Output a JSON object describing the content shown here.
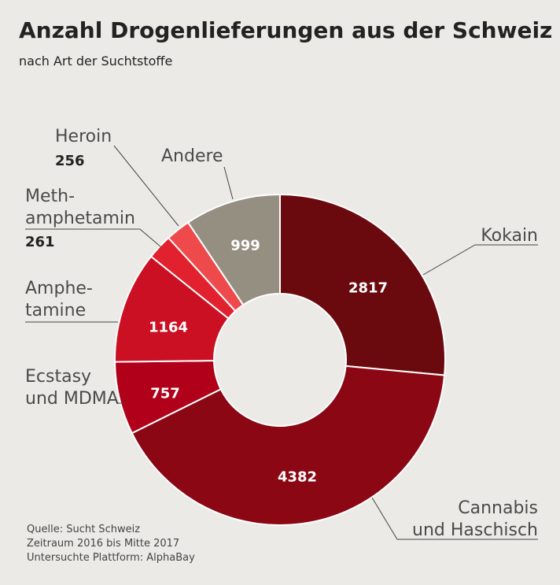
{
  "title": "Anzahl Drogenlieferungen aus der Schweiz",
  "subtitle": "nach Art der Suchtstoffe",
  "source": {
    "line1": "Quelle: Sucht Schweiz",
    "line2": "Zeitraum 2016 bis Mitte 2017",
    "line3": "Untersuchte Plattform: AlphaBay"
  },
  "chart_data": {
    "type": "pie",
    "variant": "donut",
    "title": "Anzahl Drogenlieferungen aus der Schweiz",
    "subtitle": "nach Art der Suchtstoffe",
    "slices": [
      {
        "label": "Kokain",
        "label_lines": [
          "Kokain"
        ],
        "value": 2817,
        "color": "#6b0a0e",
        "value_color": "#ffffff"
      },
      {
        "label": "Cannabis und Haschisch",
        "label_lines": [
          "Cannabis",
          "und Haschisch"
        ],
        "value": 4382,
        "color": "#8c0714",
        "value_color": "#ffffff"
      },
      {
        "label": "Ecstasy und MDMA",
        "label_lines": [
          "Ecstasy",
          "und MDMA"
        ],
        "value": 757,
        "color": "#b0001a",
        "value_color": "#ffffff"
      },
      {
        "label": "Amphetamine",
        "label_lines": [
          "Amphe-",
          "tamine"
        ],
        "value": 1164,
        "color": "#cc1023",
        "value_color": "#ffffff"
      },
      {
        "label": "Methamphetamin",
        "label_lines": [
          "Meth-",
          "amphetamin"
        ],
        "value": 261,
        "color": "#e1222e",
        "value_color": "#222222"
      },
      {
        "label": "Heroin",
        "label_lines": [
          "Heroin"
        ],
        "value": 256,
        "color": "#ee4a4c",
        "value_color": "#222222"
      },
      {
        "label": "Andere",
        "label_lines": [
          "Andere"
        ],
        "value": 999,
        "color": "#948f80",
        "value_color": "#ffffff"
      }
    ]
  }
}
